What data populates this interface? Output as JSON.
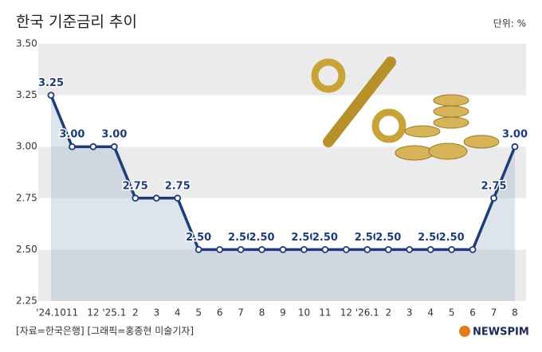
{
  "chart_data": {
    "type": "line",
    "title": "한국 기준금리 추이",
    "unit": "단위: %",
    "source": "[자료=한국은행] [그래픽=홍종현 미술기자]",
    "logo": "NEWSPIM",
    "categories": [
      "'24.10",
      "11",
      "12",
      "'25.1",
      "2",
      "3",
      "4",
      "5",
      "6",
      "7",
      "8",
      "9",
      "10",
      "11",
      "12",
      "'26.1",
      "2",
      "3",
      "4",
      "5",
      "6",
      "7",
      "8"
    ],
    "values": [
      3.25,
      3.0,
      3.0,
      3.0,
      2.75,
      2.75,
      2.75,
      2.5,
      2.5,
      2.5,
      2.5,
      2.5,
      2.5,
      2.5,
      2.5,
      2.5,
      2.5,
      2.5,
      2.5,
      2.5,
      2.5,
      2.75,
      3.0
    ],
    "value_labels": [
      "3.25",
      "3.00",
      null,
      "3.00",
      "2.75",
      null,
      "2.75",
      "2.50",
      null,
      "2.50",
      "2.50",
      null,
      "2.50",
      "2.50",
      null,
      "2.50",
      "2.50",
      null,
      "2.50",
      "2.50",
      null,
      "2.75",
      "3.00"
    ],
    "color": "#1e3d78",
    "ylim": [
      2.25,
      3.5
    ],
    "yticks": [
      {
        "value": 2.25,
        "label": "2.25"
      },
      {
        "value": 2.5,
        "label": "2.50"
      },
      {
        "value": 2.75,
        "label": "2.75"
      },
      {
        "value": 3.0,
        "label": "3.00"
      },
      {
        "value": 3.25,
        "label": "3.25"
      },
      {
        "value": 3.5,
        "label": "3.50"
      }
    ],
    "grid": true
  }
}
